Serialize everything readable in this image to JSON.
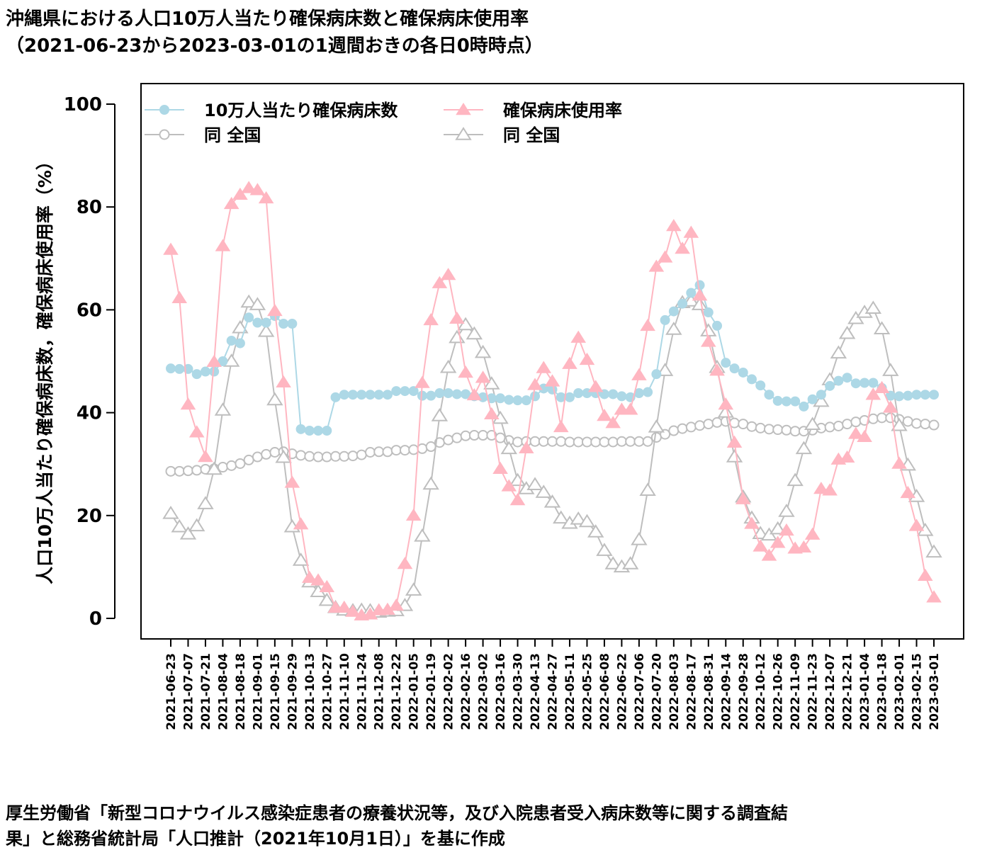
{
  "title": {
    "line1": "沖縄県における人口10万人当たり確保病床数と確保病床使用率",
    "line2": "（2021-06-23から2023-03-01の1週間おきの各日0時時点）"
  },
  "caption": {
    "line1": "厚生労働省「新型コロナウイルス感染症患者の療養状況等，及び入院患者受入病床数等に関する調査結",
    "line2": "果」と総務省統計局「人口推計（2021年10月1日）」を基に作成"
  },
  "colors": {
    "okinawa_beds": "#add8e6",
    "okinawa_rate": "#ffb6c1",
    "national": "#bebebe"
  },
  "chart_data": {
    "type": "line",
    "ylabel": "人口10万人当たり確保病床数，確保病床使用率（%）",
    "xlabel": "",
    "ylim": [
      0,
      100
    ],
    "yticks": [
      0,
      20,
      40,
      60,
      80,
      100
    ],
    "legend_position": "top-left",
    "x": [
      "2021-06-23",
      "2021-06-30",
      "2021-07-07",
      "2021-07-14",
      "2021-07-21",
      "2021-07-28",
      "2021-08-04",
      "2021-08-11",
      "2021-08-18",
      "2021-08-25",
      "2021-09-01",
      "2021-09-08",
      "2021-09-15",
      "2021-09-22",
      "2021-09-29",
      "2021-10-06",
      "2021-10-13",
      "2021-10-20",
      "2021-10-27",
      "2021-11-03",
      "2021-11-10",
      "2021-11-17",
      "2021-11-24",
      "2021-12-01",
      "2021-12-08",
      "2021-12-15",
      "2021-12-22",
      "2021-12-29",
      "2022-01-05",
      "2022-01-12",
      "2022-01-19",
      "2022-01-26",
      "2022-02-02",
      "2022-02-09",
      "2022-02-16",
      "2022-02-23",
      "2022-03-02",
      "2022-03-09",
      "2022-03-16",
      "2022-03-23",
      "2022-03-30",
      "2022-04-06",
      "2022-04-13",
      "2022-04-20",
      "2022-04-27",
      "2022-05-04",
      "2022-05-11",
      "2022-05-18",
      "2022-05-25",
      "2022-06-01",
      "2022-06-08",
      "2022-06-15",
      "2022-06-22",
      "2022-06-29",
      "2022-07-06",
      "2022-07-13",
      "2022-07-20",
      "2022-07-27",
      "2022-08-03",
      "2022-08-10",
      "2022-08-17",
      "2022-08-24",
      "2022-08-31",
      "2022-09-07",
      "2022-09-14",
      "2022-09-21",
      "2022-09-28",
      "2022-10-05",
      "2022-10-12",
      "2022-10-19",
      "2022-10-26",
      "2022-11-02",
      "2022-11-09",
      "2022-11-16",
      "2022-11-23",
      "2022-11-30",
      "2022-12-07",
      "2022-12-14",
      "2022-12-21",
      "2022-12-28",
      "2023-01-04",
      "2023-01-11",
      "2023-01-18",
      "2023-01-25",
      "2023-02-01",
      "2023-02-08",
      "2023-02-15",
      "2023-02-22",
      "2023-03-01"
    ],
    "x_tick_labels": [
      "2021-06-23",
      "2021-07-07",
      "2021-07-21",
      "2021-08-04",
      "2021-08-18",
      "2021-09-01",
      "2021-09-15",
      "2021-09-29",
      "2021-10-13",
      "2021-10-27",
      "2021-11-10",
      "2021-11-24",
      "2021-12-08",
      "2021-12-22",
      "2022-01-05",
      "2022-01-19",
      "2022-02-02",
      "2022-02-16",
      "2022-03-02",
      "2022-03-16",
      "2022-03-30",
      "2022-04-13",
      "2022-04-27",
      "2022-05-11",
      "2022-05-25",
      "2022-06-08",
      "2022-06-22",
      "2022-07-06",
      "2022-07-20",
      "2022-08-03",
      "2022-08-17",
      "2022-08-31",
      "2022-09-14",
      "2022-09-28",
      "2022-10-12",
      "2022-10-26",
      "2022-11-09",
      "2022-11-23",
      "2022-12-07",
      "2022-12-21",
      "2023-01-04",
      "2023-01-18",
      "2023-02-01",
      "2023-02-15",
      "2023-03-01"
    ],
    "series": [
      {
        "name": "10万人当たり確保病床数",
        "marker": "filled-circle",
        "color": "#add8e6",
        "values": [
          48.6,
          48.5,
          48.5,
          47.5,
          48.0,
          48.0,
          50.0,
          54.0,
          53.5,
          58.5,
          57.5,
          57.5,
          58.8,
          57.3,
          57.3,
          36.8,
          36.5,
          36.5,
          36.5,
          43.0,
          43.5,
          43.5,
          43.5,
          43.5,
          43.5,
          43.5,
          44.2,
          44.2,
          44.2,
          43.3,
          43.3,
          43.8,
          43.8,
          43.6,
          43.6,
          43.2,
          43.0,
          42.8,
          42.8,
          42.5,
          42.4,
          42.4,
          43.2,
          44.7,
          44.5,
          43.0,
          43.0,
          43.8,
          43.8,
          43.8,
          43.6,
          43.6,
          43.2,
          43.0,
          43.8,
          44.0,
          47.5,
          58.0,
          59.7,
          61.2,
          63.3,
          64.8,
          59.5,
          56.9,
          49.7,
          48.6,
          47.8,
          46.5,
          45.3,
          43.5,
          42.3,
          42.2,
          42.2,
          41.2,
          42.6,
          43.5,
          45.2,
          46.2,
          46.8,
          45.7,
          45.8,
          45.8,
          44.8,
          43.3,
          43.2,
          43.3,
          43.5,
          43.5,
          43.5
        ]
      },
      {
        "name": "確保病床使用率",
        "marker": "filled-triangle",
        "color": "#ffb6c1",
        "values": [
          71.7,
          62.3,
          41.6,
          36.2,
          31.4,
          49.9,
          72.4,
          80.6,
          82.4,
          83.7,
          83.3,
          81.7,
          59.8,
          45.9,
          26.4,
          18.3,
          7.9,
          7.4,
          6.1,
          2.1,
          2.1,
          1.3,
          0.6,
          0.8,
          1.6,
          1.7,
          2.5,
          10.6,
          20.0,
          45.8,
          58.0,
          65.2,
          66.8,
          58.3,
          47.8,
          43.4,
          46.8,
          39.7,
          29.1,
          25.7,
          23.0,
          33.1,
          45.4,
          48.7,
          46.1,
          37.2,
          49.5,
          54.6,
          50.3,
          45.0,
          39.4,
          38.0,
          40.6,
          40.6,
          47.3,
          56.9,
          68.4,
          70.2,
          76.3,
          71.9,
          75.0,
          62.8,
          53.8,
          48.2,
          41.6,
          34.2,
          23.2,
          18.4,
          14.0,
          12.2,
          14.7,
          17.1,
          13.6,
          13.8,
          16.3,
          25.2,
          24.9,
          30.9,
          31.3,
          35.9,
          35.3,
          43.5,
          44.8,
          41.0,
          30.1,
          24.4,
          18.0,
          8.3,
          4.1
        ]
      },
      {
        "name": "同 全国",
        "marker": "open-circle",
        "color": "#bebebe",
        "values": [
          28.6,
          28.6,
          28.7,
          28.8,
          29.0,
          29.1,
          29.4,
          29.7,
          30.1,
          30.8,
          31.4,
          31.9,
          32.3,
          32.4,
          32.0,
          31.7,
          31.5,
          31.4,
          31.4,
          31.5,
          31.5,
          31.6,
          31.8,
          32.3,
          32.4,
          32.4,
          32.7,
          32.7,
          32.8,
          33.0,
          33.4,
          34.2,
          34.7,
          35.1,
          35.5,
          35.6,
          35.6,
          35.6,
          35.1,
          34.6,
          34.3,
          34.4,
          34.4,
          34.4,
          34.4,
          34.4,
          34.3,
          34.3,
          34.3,
          34.3,
          34.3,
          34.3,
          34.4,
          34.4,
          34.4,
          34.4,
          35.2,
          35.8,
          36.5,
          36.9,
          37.2,
          37.5,
          37.8,
          38.1,
          38.3,
          38.0,
          37.8,
          37.3,
          37.0,
          36.8,
          36.7,
          36.6,
          36.4,
          36.4,
          36.6,
          37.0,
          37.2,
          37.4,
          37.8,
          38.2,
          38.5,
          38.8,
          39.0,
          39.0,
          38.7,
          38.3,
          37.9,
          37.8,
          37.6
        ]
      },
      {
        "name": "同 全国",
        "marker": "open-triangle",
        "color": "#bebebe",
        "values": [
          20.4,
          17.8,
          16.4,
          18.0,
          22.3,
          29.0,
          40.5,
          50.0,
          56.5,
          61.5,
          61.0,
          55.8,
          42.5,
          31.3,
          17.8,
          11.3,
          7.1,
          5.2,
          3.5,
          2.1,
          1.6,
          1.5,
          1.6,
          1.5,
          1.2,
          1.4,
          1.5,
          2.5,
          5.5,
          16.0,
          26.1,
          39.4,
          48.8,
          54.6,
          57.1,
          55.3,
          51.7,
          45.6,
          38.9,
          33.0,
          26.8,
          25.2,
          26.0,
          24.5,
          22.6,
          19.5,
          18.5,
          19.3,
          18.8,
          16.8,
          13.2,
          10.6,
          10.0,
          10.6,
          15.3,
          24.9,
          37.2,
          48.2,
          56.2,
          61.4,
          61.7,
          61.0,
          55.9,
          48.8,
          40.1,
          31.4,
          23.6,
          19.5,
          16.5,
          16.2,
          17.4,
          20.8,
          26.8,
          33.0,
          37.7,
          42.2,
          46.4,
          51.6,
          55.4,
          58.3,
          59.5,
          60.3,
          56.3,
          48.2,
          37.5,
          29.8,
          23.7,
          17.1,
          12.9
        ]
      }
    ]
  }
}
